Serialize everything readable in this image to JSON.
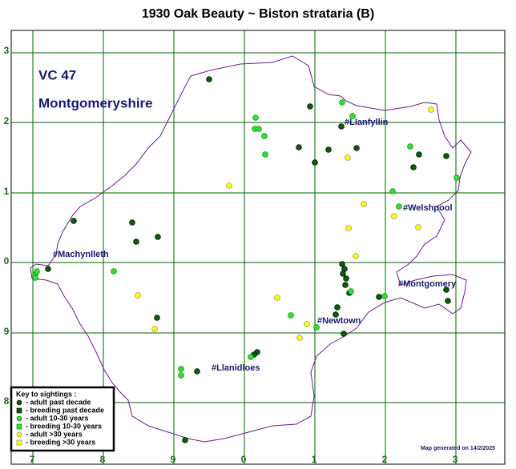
{
  "header": {
    "title": "1930 Oak Beauty ~ Biston strataria (B)"
  },
  "region": {
    "code": "VC 47",
    "name": "Montgomeryshire"
  },
  "grid": {
    "x_labels": [
      "7",
      "8",
      "9",
      "0",
      "1",
      "2",
      "3"
    ],
    "y_labels": [
      "3",
      "2",
      "1",
      "0",
      "9",
      "8"
    ]
  },
  "towns": [
    "#Llanfyllin",
    "#Welshpool",
    "#Machynlleth",
    "#Montgomery",
    "#Newtown",
    "#Llanidloes"
  ],
  "key": {
    "title": "Key to sightings :",
    "items": [
      "- adult past decade",
      "- breeding past decade",
      "- adult 10-30 years",
      "- breeding 10-30 years",
      "- adult >30 years",
      "- breeding >30 years"
    ]
  },
  "footer": "Map generated on 14/2/2025"
}
